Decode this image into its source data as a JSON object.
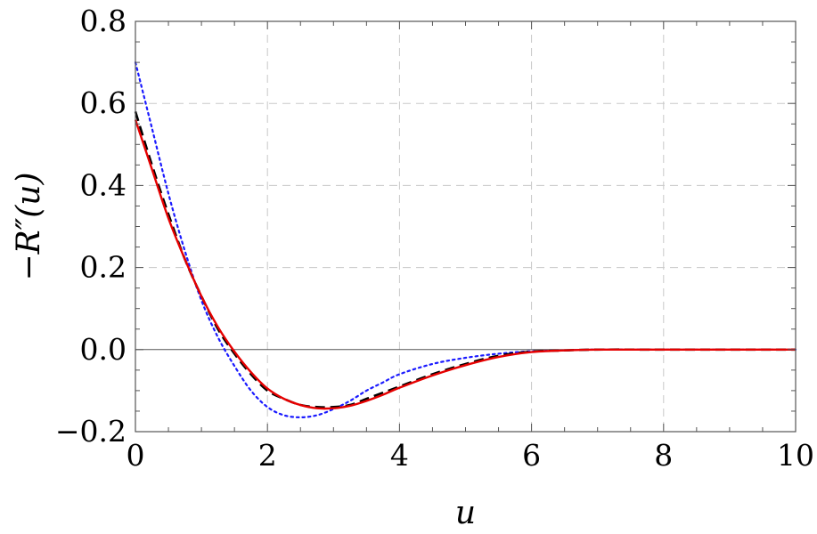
{
  "chart_data": {
    "type": "line",
    "title": "",
    "xlabel": "u",
    "ylabel": "−R″(u)",
    "xlim": [
      0,
      10
    ],
    "ylim": [
      -0.2,
      0.8
    ],
    "xticks": [
      0,
      2,
      4,
      6,
      8,
      10
    ],
    "xtick_labels": [
      "0",
      "2",
      "4",
      "6",
      "8",
      "10"
    ],
    "yticks": [
      -0.2,
      0.0,
      0.2,
      0.4,
      0.6,
      0.8
    ],
    "ytick_labels": [
      "−0.2",
      "0.0",
      "0.2",
      "0.4",
      "0.6",
      "0.8"
    ],
    "grid": true,
    "series": [
      {
        "style": "dotted",
        "color": "#1a1aff",
        "x": [
          0,
          0.25,
          0.5,
          0.75,
          1.0,
          1.25,
          1.5,
          1.75,
          2.0,
          2.25,
          2.5,
          2.75,
          3.0,
          3.25,
          3.5,
          3.75,
          4.0,
          4.5,
          5.0,
          5.5,
          6.0,
          6.5,
          7.0,
          8.0,
          9.0,
          10.0
        ],
        "y": [
          0.7,
          0.54,
          0.38,
          0.24,
          0.12,
          0.03,
          -0.04,
          -0.1,
          -0.14,
          -0.16,
          -0.165,
          -0.16,
          -0.145,
          -0.125,
          -0.1,
          -0.08,
          -0.06,
          -0.035,
          -0.02,
          -0.01,
          -0.004,
          -0.002,
          0.0,
          0.0,
          0.0,
          0.0
        ]
      },
      {
        "style": "dashed",
        "color": "#000000",
        "x": [
          0,
          0.25,
          0.5,
          0.75,
          1.0,
          1.25,
          1.5,
          1.75,
          2.0,
          2.25,
          2.5,
          2.75,
          3.0,
          3.25,
          3.5,
          3.75,
          4.0,
          4.5,
          5.0,
          5.5,
          6.0,
          6.5,
          7.0,
          8.0,
          9.0,
          10.0
        ],
        "y": [
          0.58,
          0.45,
          0.33,
          0.22,
          0.13,
          0.05,
          -0.01,
          -0.06,
          -0.1,
          -0.12,
          -0.135,
          -0.14,
          -0.14,
          -0.135,
          -0.12,
          -0.105,
          -0.09,
          -0.06,
          -0.035,
          -0.015,
          -0.005,
          -0.002,
          0.0,
          0.0,
          0.0,
          0.0
        ]
      },
      {
        "style": "solid",
        "color": "#e60000",
        "x": [
          0,
          0.25,
          0.5,
          0.75,
          1.0,
          1.25,
          1.5,
          1.75,
          2.0,
          2.25,
          2.5,
          2.75,
          3.0,
          3.25,
          3.5,
          3.75,
          4.0,
          4.5,
          5.0,
          5.5,
          6.0,
          6.5,
          7.0,
          8.0,
          9.0,
          10.0
        ],
        "y": [
          0.56,
          0.44,
          0.32,
          0.22,
          0.13,
          0.055,
          -0.005,
          -0.055,
          -0.095,
          -0.12,
          -0.135,
          -0.143,
          -0.143,
          -0.137,
          -0.125,
          -0.11,
          -0.093,
          -0.063,
          -0.038,
          -0.018,
          -0.006,
          -0.002,
          0.0,
          0.0,
          0.0,
          0.0
        ]
      }
    ]
  }
}
